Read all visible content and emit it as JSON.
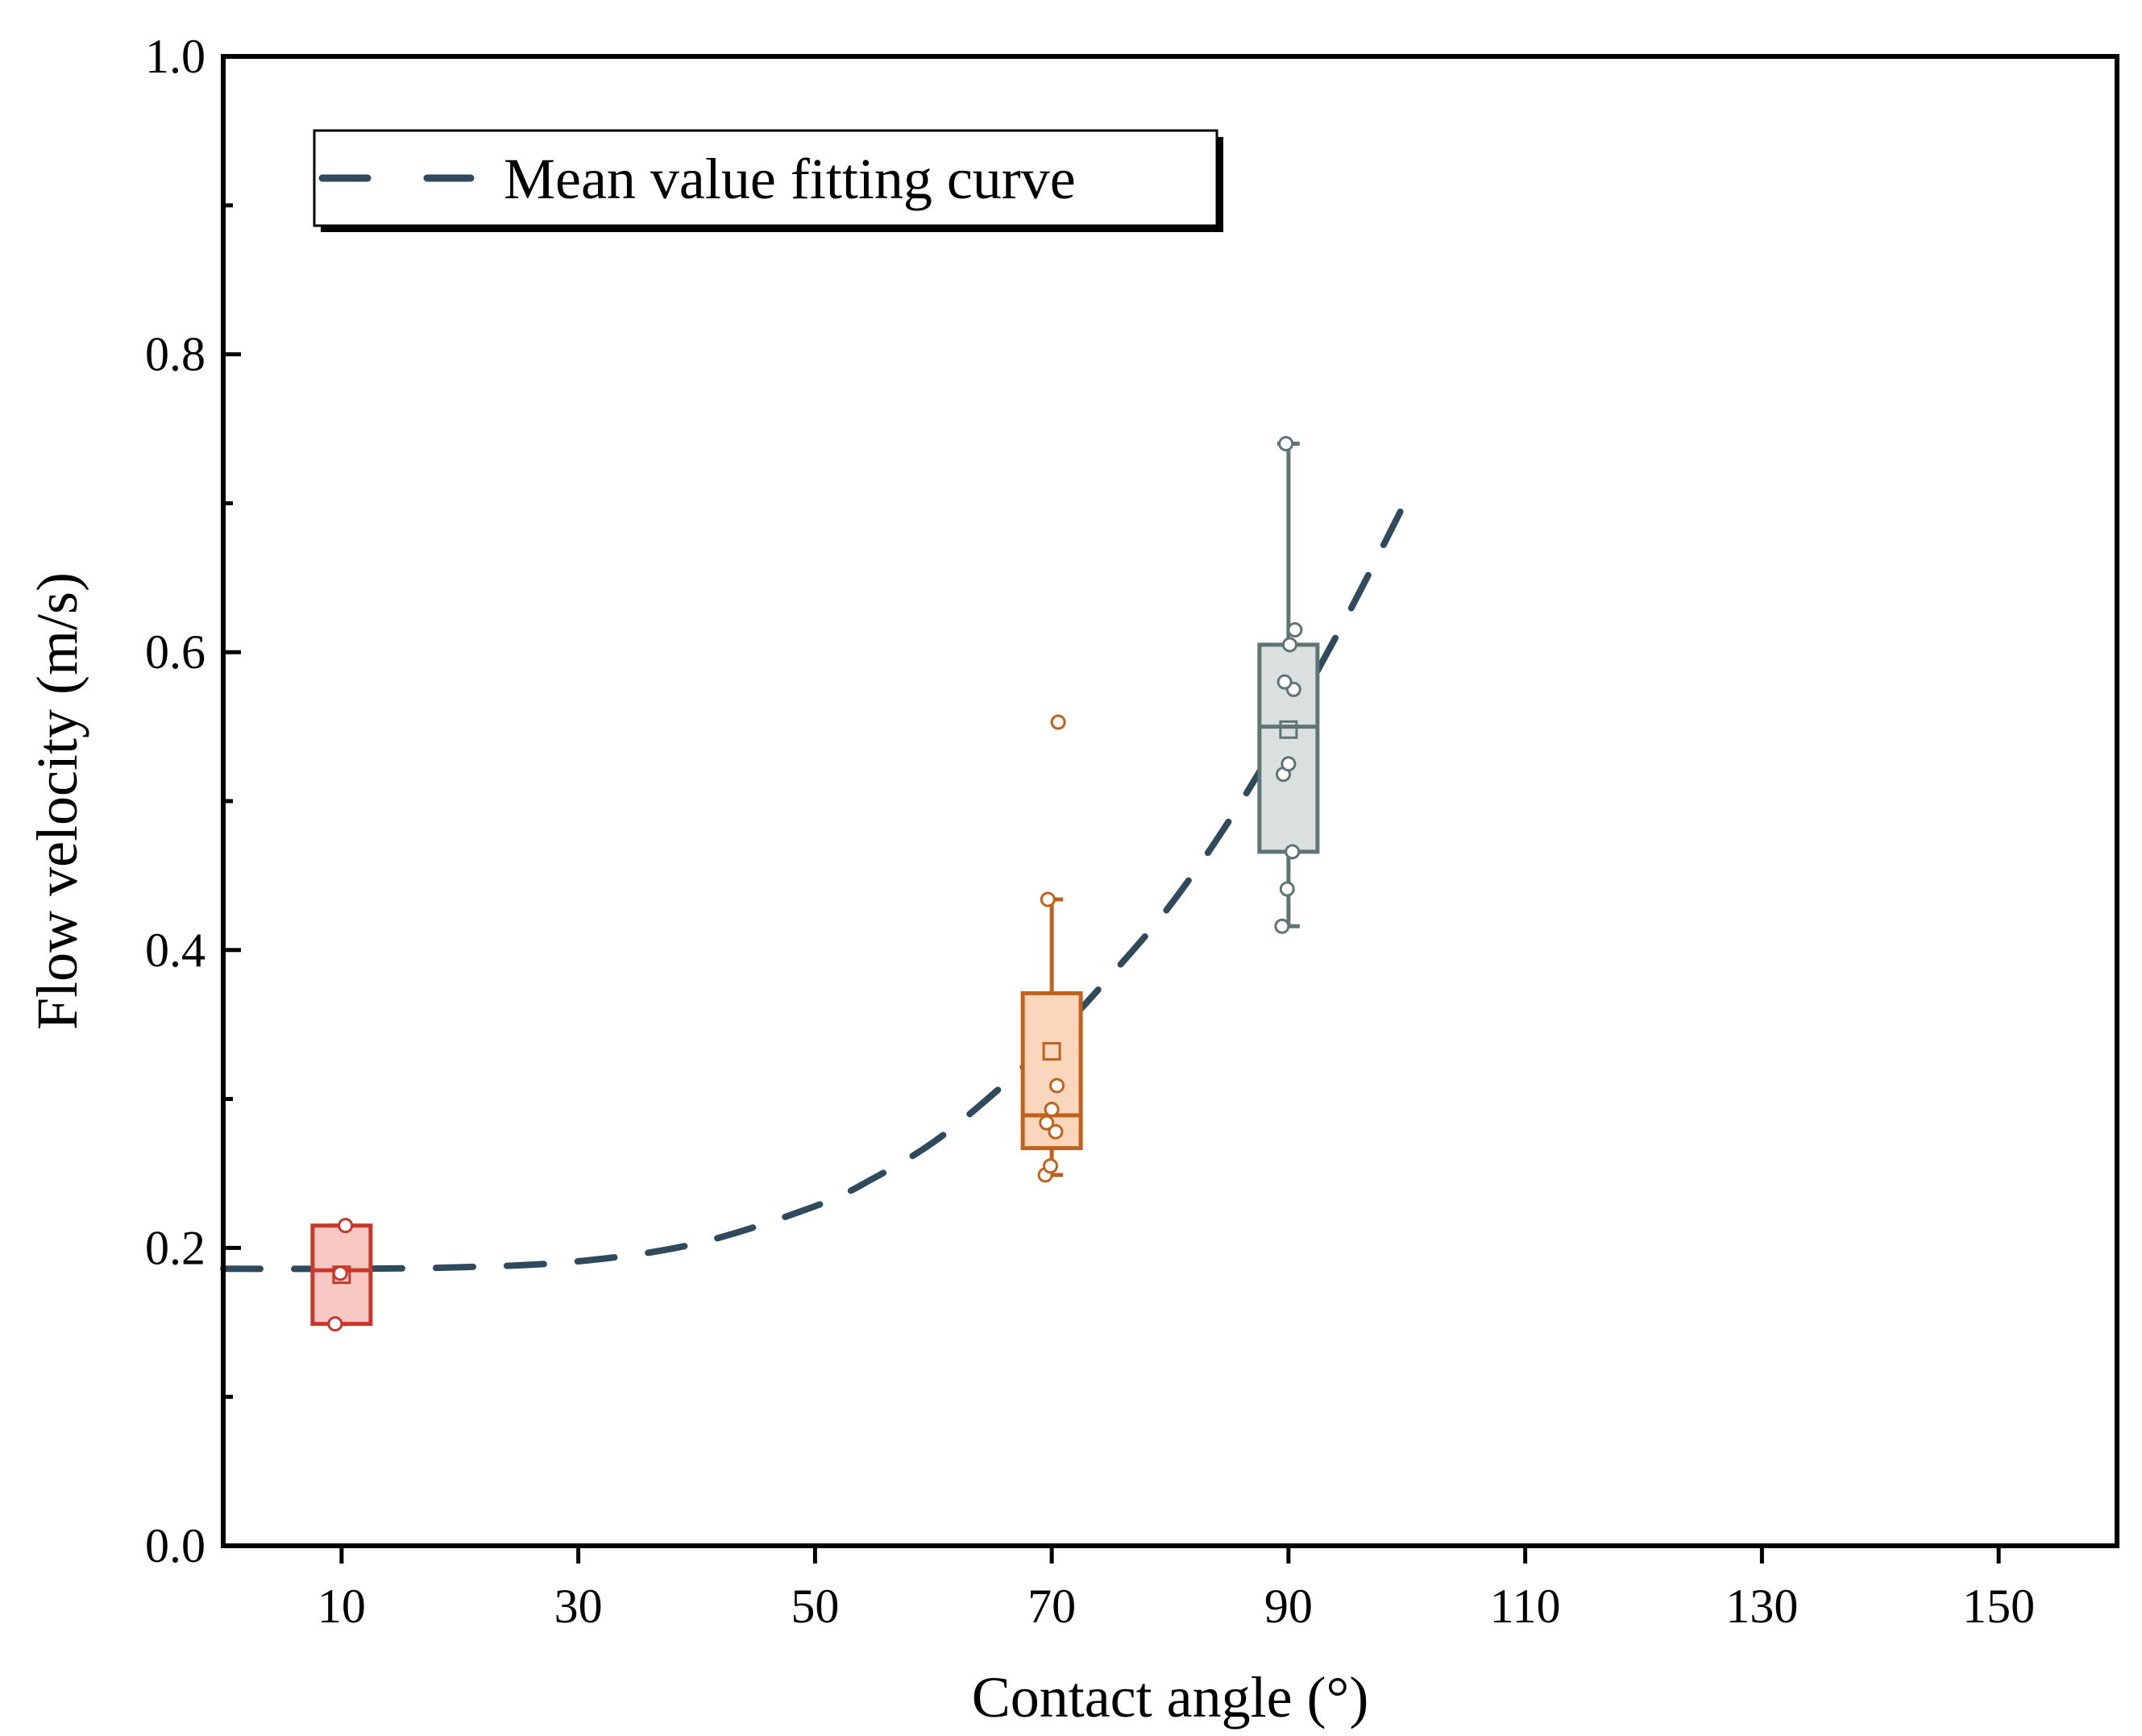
{
  "chart_data": {
    "type": "box",
    "xlabel": "Contact angle (°)",
    "ylabel": "Flow velocity (m/s)",
    "xlim": [
      0,
      160
    ],
    "ylim": [
      0.0,
      1.0
    ],
    "x_ticks": [
      10,
      30,
      50,
      70,
      90,
      110,
      130,
      150
    ],
    "x_tick_labels": [
      "10",
      "30",
      "50",
      "70",
      "90",
      "110",
      "130",
      "150"
    ],
    "y_ticks": [
      0.0,
      0.2,
      0.4,
      0.6,
      0.8,
      1.0
    ],
    "y_tick_labels": [
      "0.0",
      "0.2",
      "0.4",
      "0.6",
      "0.8",
      "1.0"
    ],
    "y_minor_ticks": [
      0.1,
      0.3,
      0.5,
      0.7,
      0.9
    ],
    "grid": false,
    "legend": {
      "position": "top-left",
      "label": "Mean value fitting curve"
    },
    "boxes": [
      {
        "x": 10,
        "color": "#c8382a",
        "fill": "#f7c9c2",
        "whisker_low": 0.149,
        "q1": 0.149,
        "median": 0.185,
        "q3": 0.215,
        "whisker_high": 0.215,
        "mean": 0.182,
        "points": [
          0.149,
          0.183,
          0.215
        ]
      },
      {
        "x": 70,
        "color": "#c0621c",
        "fill": "#fad6bd",
        "whisker_low": 0.249,
        "q1": 0.267,
        "median": 0.289,
        "q3": 0.371,
        "whisker_high": 0.434,
        "mean": 0.332,
        "points": [
          0.249,
          0.255,
          0.278,
          0.284,
          0.293,
          0.309,
          0.434
        ],
        "outliers": [
          0.553
        ]
      },
      {
        "x": 90,
        "color": "#5f7474",
        "fill": "#d9e0df",
        "whisker_low": 0.416,
        "q1": 0.466,
        "median": 0.55,
        "q3": 0.605,
        "whisker_high": 0.74,
        "mean": 0.548,
        "points": [
          0.416,
          0.441,
          0.466,
          0.518,
          0.525,
          0.575,
          0.58,
          0.605,
          0.615,
          0.74
        ]
      }
    ],
    "fit_curve": {
      "name": "Mean value fitting curve",
      "color": "#2e4a5c",
      "style": "dashed",
      "x": [
        0,
        10,
        20,
        30,
        40,
        50,
        55,
        60,
        65,
        70,
        75,
        80,
        85,
        90,
        95,
        100
      ],
      "y": [
        0.186,
        0.186,
        0.187,
        0.191,
        0.203,
        0.228,
        0.247,
        0.271,
        0.303,
        0.34,
        0.383,
        0.43,
        0.487,
        0.553,
        0.625,
        0.703
      ]
    }
  }
}
